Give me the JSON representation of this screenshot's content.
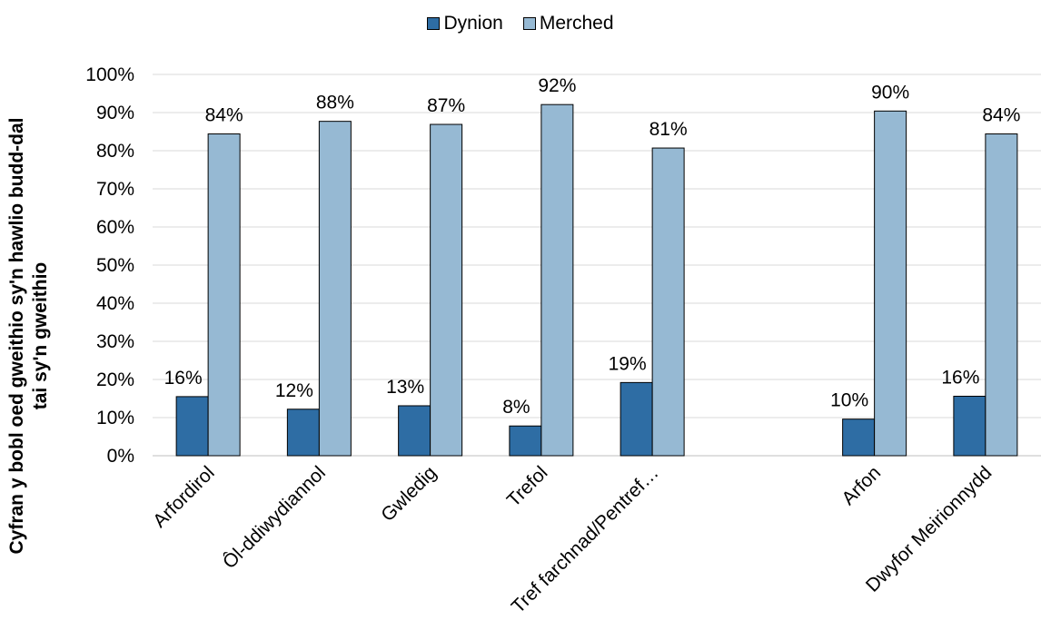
{
  "chart_data": {
    "type": "bar",
    "title": "",
    "xlabel": "",
    "ylabel": "Cyfran y bobl oed gweithio sy'n hawlio budd-dal tai sy'n gweithio",
    "ylabel_lines": [
      "Cyfran y bobl oed gweithio sy'n hawlio budd-dal",
      "tai sy'n gweithio"
    ],
    "ylim": [
      0,
      100
    ],
    "yticks": [
      "0%",
      "10%",
      "20%",
      "30%",
      "40%",
      "50%",
      "60%",
      "70%",
      "80%",
      "90%",
      "100%"
    ],
    "grid": true,
    "legend_position": "top-center",
    "categories": [
      "Arfordirol",
      "Ôl-ddiwydiannol",
      "Gwledig",
      "Trefol",
      "Tref farchnad/Pentref…",
      "",
      "Arfon",
      "Dwyfor Meirionnydd"
    ],
    "series": [
      {
        "name": "Dynion",
        "color": "#2e6da4",
        "values": [
          15.5,
          12.2,
          13.1,
          7.8,
          19.2,
          null,
          9.6,
          15.6
        ],
        "labels": [
          "16%",
          "12%",
          "13%",
          "8%",
          "19%",
          "",
          "10%",
          "16%"
        ]
      },
      {
        "name": "Merched",
        "color": "#96b9d3",
        "values": [
          84.4,
          87.7,
          86.9,
          92.1,
          80.7,
          null,
          90.4,
          84.4
        ],
        "labels": [
          "84%",
          "88%",
          "87%",
          "92%",
          "81%",
          "",
          "90%",
          "84%"
        ]
      }
    ]
  }
}
